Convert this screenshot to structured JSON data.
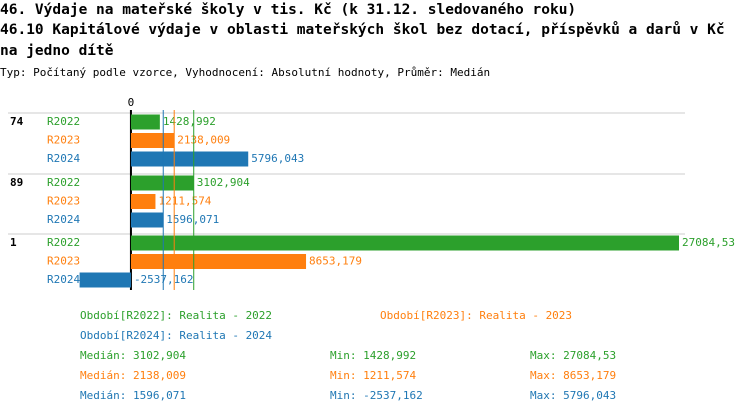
{
  "chart_data": {
    "type": "bar",
    "orientation": "horizontal",
    "title": "46. Výdaje na mateřské školy v tis. Kč (k 31.12. sledovaného roku)",
    "subtitle": "46.10 Kapitálové výdaje v oblasti mateřských škol bez dotací, příspěvků a darů v Kč na jedno dítě",
    "note": "Typ: Počítaný podle vzorce, Vyhodnocení: Absolutní hodnoty, Průměr: Medián",
    "categories": [
      "74",
      "89",
      "1"
    ],
    "xlim": [
      -4000,
      30000
    ],
    "xticks": [
      0
    ],
    "series": [
      {
        "name": "R2022",
        "color": "#2ca02c",
        "legend": "Období[R2022]: Realita - 2022",
        "values": [
          1428.992,
          3102.904,
          27084.53
        ],
        "value_labels": [
          "1428,992",
          "3102,904",
          "27084,53"
        ],
        "median": 3102.904,
        "median_label": "Medián: 3102,904",
        "min_label": "Min: 1428,992",
        "max_label": "Max: 27084,53"
      },
      {
        "name": "R2023",
        "color": "#ff7f0e",
        "legend": "Období[R2023]: Realita - 2023",
        "values": [
          2138.009,
          1211.574,
          8653.179
        ],
        "value_labels": [
          "2138,009",
          "1211,574",
          "8653,179"
        ],
        "median": 2138.009,
        "median_label": "Medián: 2138,009",
        "min_label": "Min: 1211,574",
        "max_label": "Max: 8653,179"
      },
      {
        "name": "R2024",
        "color": "#1f77b4",
        "legend": "Období[R2024]: Realita - 2024",
        "values": [
          5796.043,
          1596.071,
          -2537.162
        ],
        "value_labels": [
          "5796,043",
          "1596,071",
          "-2537,162"
        ],
        "median": 1596.071,
        "median_label": "Medián: 1596,071",
        "min_label": "Min: -2537,162",
        "max_label": "Max: 5796,043"
      }
    ]
  }
}
